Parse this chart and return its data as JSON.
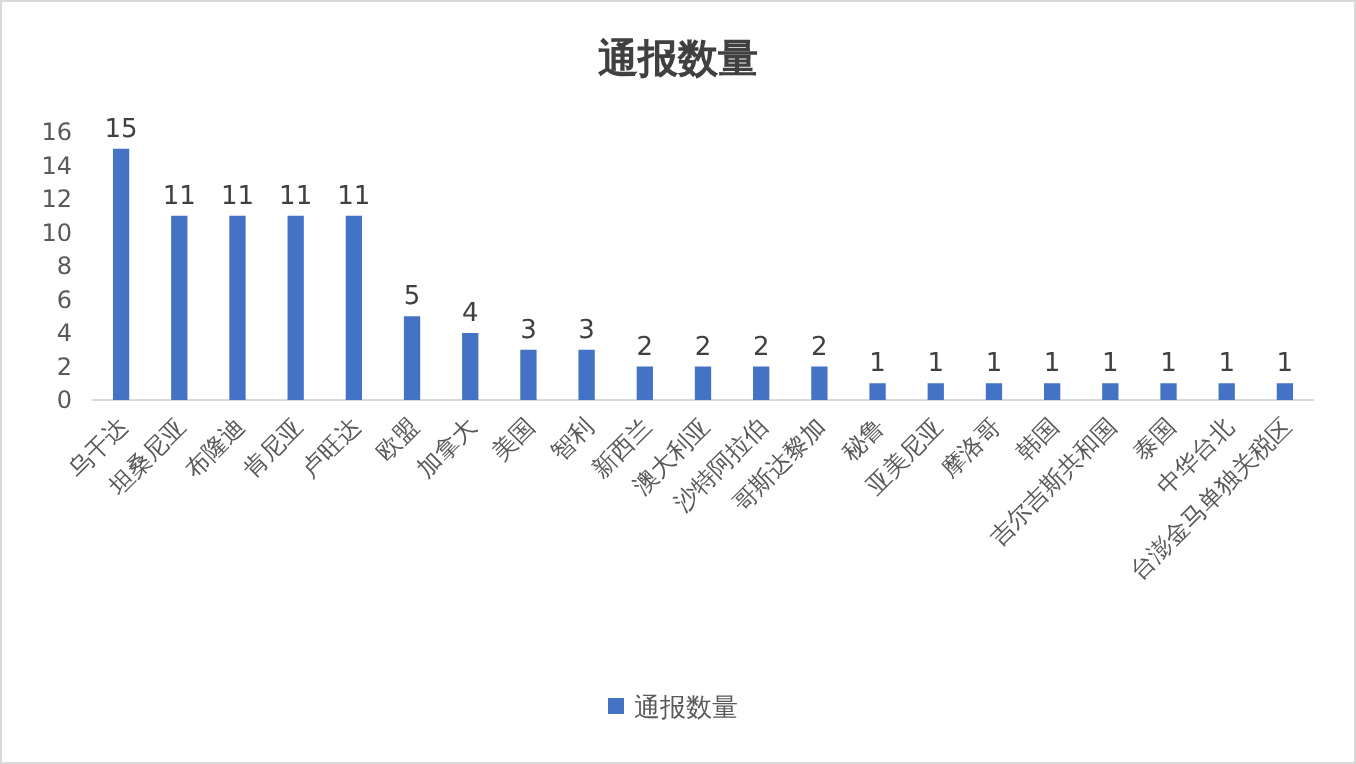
{
  "chart_data": {
    "type": "bar",
    "title": "通报数量",
    "categories": [
      "乌干达",
      "坦桑尼亚",
      "布隆迪",
      "肯尼亚",
      "卢旺达",
      "欧盟",
      "加拿大",
      "美国",
      "智利",
      "新西兰",
      "澳大利亚",
      "沙特阿拉伯",
      "哥斯达黎加",
      "秘鲁",
      "亚美尼亚",
      "摩洛哥",
      "韩国",
      "吉尔吉斯共和国",
      "泰国",
      "中华台北",
      "台澎金马单独关税区"
    ],
    "series": [
      {
        "name": "通报数量",
        "color": "#4472c4",
        "values": [
          15,
          11,
          11,
          11,
          11,
          5,
          4,
          3,
          3,
          2,
          2,
          2,
          2,
          1,
          1,
          1,
          1,
          1,
          1,
          1,
          1
        ]
      }
    ],
    "ylim": [
      0,
      16
    ],
    "yticks": [
      0,
      2,
      4,
      6,
      8,
      10,
      12,
      14,
      16
    ],
    "data_labels": true,
    "legend": "bottom"
  }
}
